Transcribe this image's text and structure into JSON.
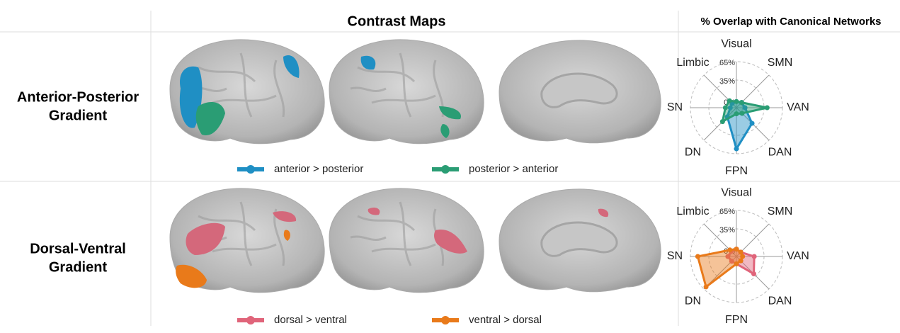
{
  "header": {
    "left": "Contrast Maps",
    "right": "% Overlap with Canonical Networks"
  },
  "rows": [
    {
      "label": [
        "Anterior-Posterior",
        "Gradient"
      ]
    },
    {
      "label": [
        "Dorsal-Ventral",
        "Gradient"
      ]
    }
  ],
  "chart_data": [
    {
      "type": "radar",
      "categories": [
        "Visual",
        "SMN",
        "VAN",
        "DAN",
        "FPN",
        "DN",
        "SN",
        "Limbic"
      ],
      "rlim": [
        -10,
        65
      ],
      "rticks": [
        {
          "value": 0,
          "label": "0%"
        },
        {
          "value": 35,
          "label": "35%"
        },
        {
          "value": 65,
          "label": "65%"
        }
      ],
      "series": [
        {
          "name": "anterior > posterior",
          "color": "#1f8fc4",
          "values": [
            0,
            2,
            4,
            26,
            57,
            11,
            0,
            0
          ]
        },
        {
          "name": "posterior > anterior",
          "color": "#2a9d74",
          "values": [
            0,
            2,
            40,
            3,
            0,
            22,
            8,
            6
          ]
        }
      ]
    },
    {
      "type": "radar",
      "categories": [
        "Visual",
        "SMN",
        "VAN",
        "DAN",
        "FPN",
        "DN",
        "SN",
        "Limbic"
      ],
      "rlim": [
        -10,
        65
      ],
      "rticks": [
        {
          "value": 0,
          "label": "0%"
        },
        {
          "value": 35,
          "label": "35%"
        },
        {
          "value": 65,
          "label": "65%"
        }
      ],
      "series": [
        {
          "name": "dorsal > ventral",
          "color": "#e0647a",
          "values": [
            2,
            0,
            19,
            30,
            2,
            1,
            4,
            2
          ]
        },
        {
          "name": "ventral > dorsal",
          "color": "#e97a1a",
          "values": [
            2,
            0,
            0,
            0,
            2,
            60,
            53,
            5
          ]
        }
      ]
    }
  ]
}
